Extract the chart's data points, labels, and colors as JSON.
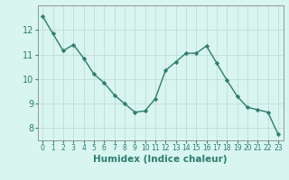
{
  "x": [
    0,
    1,
    2,
    3,
    4,
    5,
    6,
    7,
    8,
    9,
    10,
    11,
    12,
    13,
    14,
    15,
    16,
    17,
    18,
    19,
    20,
    21,
    22,
    23
  ],
  "y": [
    12.55,
    11.85,
    11.15,
    11.4,
    10.85,
    10.2,
    9.85,
    9.35,
    9.0,
    8.65,
    8.7,
    9.2,
    10.35,
    10.7,
    11.05,
    11.05,
    11.35,
    10.65,
    9.95,
    9.3,
    8.85,
    8.75,
    8.65,
    7.75
  ],
  "line_color": "#2e7d6e",
  "marker": "D",
  "marker_size": 2.2,
  "line_width": 1.0,
  "xlabel": "Humidex (Indice chaleur)",
  "xlim": [
    -0.5,
    23.5
  ],
  "ylim": [
    7.5,
    13.0
  ],
  "yticks": [
    8,
    9,
    10,
    11,
    12
  ],
  "xticks": [
    0,
    1,
    2,
    3,
    4,
    5,
    6,
    7,
    8,
    9,
    10,
    11,
    12,
    13,
    14,
    15,
    16,
    17,
    18,
    19,
    20,
    21,
    22,
    23
  ],
  "background_color": "#d8f5f0",
  "grid_color": "#c0ddd8",
  "tick_color": "#2e7d6e",
  "xlabel_fontsize": 7.5,
  "ytick_fontsize": 7,
  "xtick_fontsize": 5.5
}
